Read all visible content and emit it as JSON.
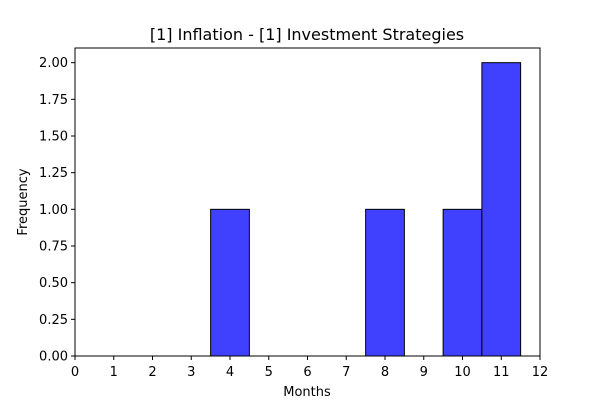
{
  "chart_data": {
    "type": "bar",
    "title": "[1] Inflation - [1] Investment Strategies",
    "xlabel": "Months",
    "ylabel": "Frequency",
    "xlim": [
      0,
      12
    ],
    "ylim": [
      0,
      2.1
    ],
    "x_ticks": [
      "0",
      "1",
      "2",
      "3",
      "4",
      "5",
      "6",
      "7",
      "8",
      "9",
      "10",
      "11",
      "12"
    ],
    "y_ticks": [
      "0.00",
      "0.25",
      "0.50",
      "0.75",
      "1.00",
      "1.25",
      "1.50",
      "1.75",
      "2.00"
    ],
    "bins": [
      {
        "start": 3.5,
        "end": 4.5,
        "value": 1
      },
      {
        "start": 7.5,
        "end": 8.5,
        "value": 1
      },
      {
        "start": 9.5,
        "end": 10.5,
        "value": 1
      },
      {
        "start": 10.5,
        "end": 11.5,
        "value": 2
      }
    ],
    "bar_color": "#4040ff",
    "edge_color": "#000000",
    "grid": false,
    "legend": false
  }
}
